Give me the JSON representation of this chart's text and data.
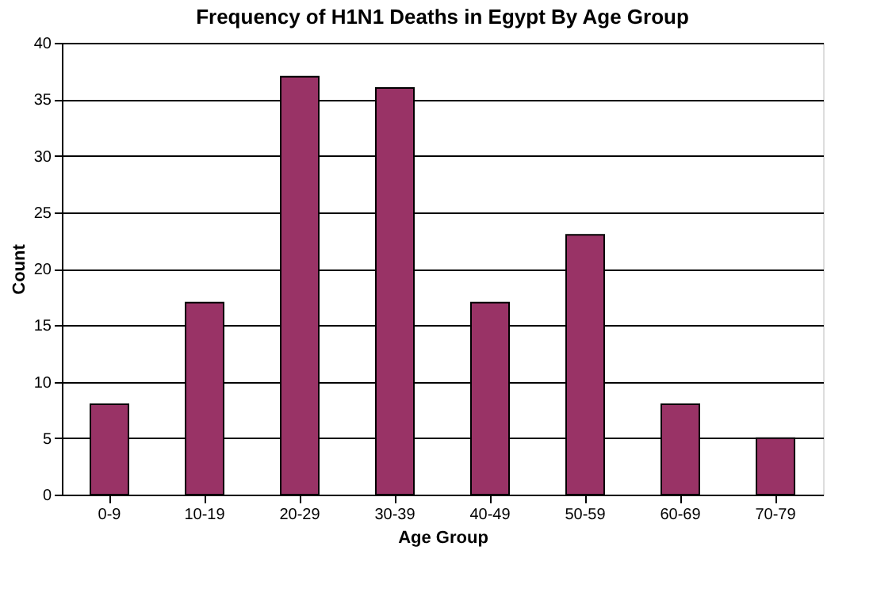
{
  "chart_data": {
    "type": "bar",
    "title": "Frequency of H1N1 Deaths in Egypt By Age Group",
    "xlabel": "Age Group",
    "ylabel": "Count",
    "categories": [
      "0-9",
      "10-19",
      "20-29",
      "30-39",
      "40-49",
      "50-59",
      "60-69",
      "70-79"
    ],
    "values": [
      8,
      17,
      37,
      36,
      17,
      23,
      8,
      5
    ],
    "color": "#993366",
    "ylim": [
      0,
      40
    ],
    "yticks": [
      0,
      5,
      10,
      15,
      20,
      25,
      30,
      35,
      40
    ],
    "grid": "y"
  }
}
